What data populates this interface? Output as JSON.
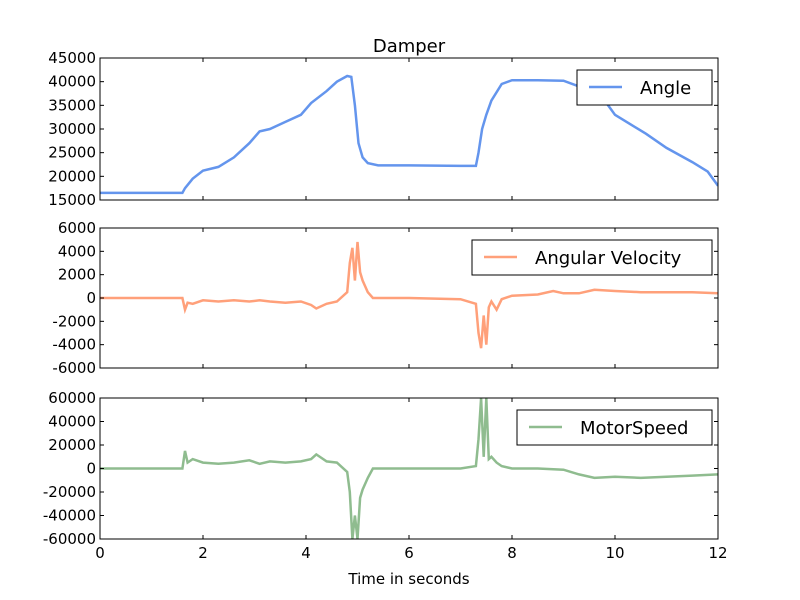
{
  "chart_data": {
    "type": "line",
    "title": "Damper",
    "xlabel": "Time in seconds",
    "xlim": [
      0,
      12
    ],
    "xticks": [
      "0",
      "2",
      "4",
      "6",
      "8",
      "10",
      "12"
    ],
    "grid": false,
    "panels": [
      {
        "name": "Angle",
        "color": "#6495ED",
        "legend_position": "top-right",
        "ylim": [
          15000,
          45000
        ],
        "yticks": [
          "15000",
          "20000",
          "25000",
          "30000",
          "35000",
          "40000",
          "45000"
        ],
        "x": [
          0,
          1.6,
          1.65,
          1.8,
          2.0,
          2.3,
          2.6,
          2.9,
          3.1,
          3.3,
          3.6,
          3.9,
          4.1,
          4.4,
          4.6,
          4.8,
          4.88,
          4.95,
          5.02,
          5.1,
          5.2,
          5.4,
          6.0,
          7.0,
          7.3,
          7.35,
          7.42,
          7.5,
          7.6,
          7.8,
          8.0,
          8.5,
          9.0,
          9.3,
          9.5,
          9.8,
          10.0,
          10.3,
          10.6,
          11.0,
          11.5,
          11.8,
          12.0
        ],
        "y": [
          16500,
          16500,
          17500,
          19500,
          21200,
          22000,
          24000,
          27000,
          29500,
          30000,
          31500,
          33000,
          35500,
          38000,
          40000,
          41200,
          41000,
          35000,
          27000,
          24000,
          22800,
          22300,
          22300,
          22200,
          22200,
          25000,
          30000,
          33000,
          36000,
          39500,
          40300,
          40300,
          40200,
          39000,
          38000,
          36000,
          33000,
          31000,
          29000,
          26000,
          23000,
          21000,
          18000
        ]
      },
      {
        "name": "Angular Velocity",
        "color": "#FFA07A",
        "legend_position": "top-right",
        "ylim": [
          -6000,
          6000
        ],
        "yticks": [
          "-6000",
          "-4000",
          "-2000",
          "0",
          "2000",
          "4000",
          "6000"
        ],
        "x": [
          0,
          1.6,
          1.65,
          1.7,
          1.8,
          2.0,
          2.3,
          2.6,
          2.9,
          3.1,
          3.3,
          3.6,
          3.9,
          4.1,
          4.2,
          4.4,
          4.6,
          4.8,
          4.85,
          4.9,
          4.95,
          5.0,
          5.05,
          5.1,
          5.2,
          5.3,
          5.5,
          6.0,
          7.0,
          7.3,
          7.35,
          7.4,
          7.45,
          7.5,
          7.55,
          7.6,
          7.7,
          7.8,
          8.0,
          8.5,
          8.8,
          9.0,
          9.3,
          9.6,
          10.0,
          10.5,
          11.0,
          11.5,
          12.0
        ],
        "y": [
          0,
          0,
          -1000,
          -400,
          -500,
          -200,
          -300,
          -200,
          -300,
          -200,
          -300,
          -400,
          -300,
          -600,
          -900,
          -500,
          -300,
          500,
          3000,
          4300,
          1500,
          4800,
          2200,
          1500,
          500,
          0,
          0,
          0,
          -100,
          -500,
          -3000,
          -4300,
          -1500,
          -4000,
          -800,
          -300,
          -1000,
          -100,
          200,
          300,
          600,
          400,
          400,
          700,
          600,
          500,
          500,
          500,
          400
        ]
      },
      {
        "name": "MotorSpeed",
        "color": "#8FBC8F",
        "legend_position": "top-right",
        "ylim": [
          -60000,
          60000
        ],
        "yticks": [
          "-60000",
          "-40000",
          "-20000",
          "0",
          "20000",
          "40000",
          "60000"
        ],
        "x": [
          0,
          1.6,
          1.65,
          1.7,
          1.8,
          2.0,
          2.3,
          2.6,
          2.9,
          3.1,
          3.3,
          3.6,
          3.9,
          4.1,
          4.2,
          4.4,
          4.6,
          4.8,
          4.85,
          4.9,
          4.95,
          5.0,
          5.05,
          5.1,
          5.2,
          5.3,
          5.5,
          6.0,
          7.0,
          7.3,
          7.35,
          7.4,
          7.45,
          7.5,
          7.55,
          7.6,
          7.7,
          7.8,
          8.0,
          8.5,
          9.0,
          9.3,
          9.6,
          10.0,
          10.5,
          11.0,
          11.5,
          12.0
        ],
        "y": [
          0,
          0,
          15000,
          5000,
          8000,
          5000,
          4000,
          5000,
          7000,
          4000,
          6000,
          5000,
          6000,
          8000,
          12000,
          6000,
          5000,
          -3000,
          -20000,
          -60000,
          -40000,
          -60000,
          -25000,
          -18000,
          -8000,
          0,
          0,
          0,
          0,
          2000,
          25000,
          60000,
          10000,
          60000,
          8000,
          10000,
          5000,
          2000,
          0,
          0,
          -1000,
          -5000,
          -8000,
          -7000,
          -8000,
          -7000,
          -6000,
          -5000
        ]
      }
    ]
  }
}
